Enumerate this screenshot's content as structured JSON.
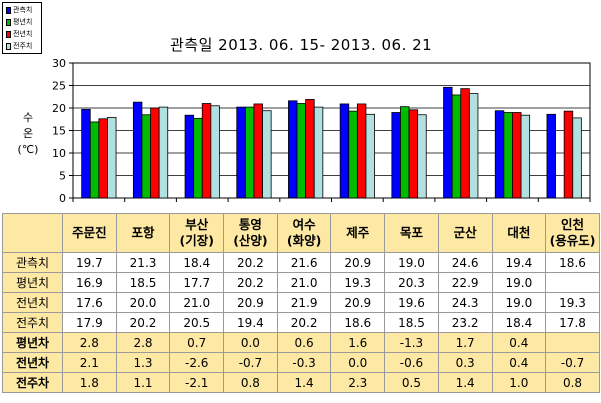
{
  "legend": [
    {
      "label": "관측치",
      "color": "#0000ff"
    },
    {
      "label": "평년치",
      "color": "#00bb00"
    },
    {
      "label": "전년치",
      "color": "#ff0000"
    },
    {
      "label": "전주치",
      "color": "#b0e0e0"
    }
  ],
  "chart_data": {
    "type": "bar",
    "title": "관측일 2013. 06. 15-  2013. 06. 21",
    "ylabel": "수온 (℃)",
    "ylim": [
      0,
      30
    ],
    "yticks": [
      0,
      5,
      10,
      15,
      20,
      25,
      30
    ],
    "grid": true,
    "legend_position": "top-left",
    "categories": [
      "주문진",
      "포항",
      "부산(기장)",
      "통영(산양)",
      "여수(화양)",
      "제주",
      "목포",
      "군산",
      "대천",
      "인천(용유도)"
    ],
    "series": [
      {
        "name": "관측치",
        "color": "#0000ff",
        "values": [
          19.7,
          21.3,
          18.4,
          20.2,
          21.6,
          20.9,
          19.0,
          24.6,
          19.4,
          18.6
        ]
      },
      {
        "name": "평년치",
        "color": "#00bb00",
        "values": [
          16.9,
          18.5,
          17.7,
          20.2,
          21.0,
          19.3,
          20.3,
          22.9,
          19.0,
          null
        ]
      },
      {
        "name": "전년치",
        "color": "#ff0000",
        "values": [
          17.6,
          20.0,
          21.0,
          20.9,
          21.9,
          20.9,
          19.6,
          24.3,
          19.0,
          19.3
        ]
      },
      {
        "name": "전주치",
        "color": "#b0e0e0",
        "values": [
          17.9,
          20.2,
          20.5,
          19.4,
          20.2,
          18.6,
          18.5,
          23.2,
          18.4,
          17.8
        ]
      }
    ]
  },
  "table": {
    "headers": [
      [
        "주문진"
      ],
      [
        "포항"
      ],
      [
        "부산",
        "(기장)"
      ],
      [
        "통영",
        "(산양)"
      ],
      [
        "여수",
        "(화양)"
      ],
      [
        "제주"
      ],
      [
        "목포"
      ],
      [
        "군산"
      ],
      [
        "대천"
      ],
      [
        "인천",
        "(용유도)"
      ]
    ],
    "rows": [
      {
        "label": "관측치",
        "dark": false,
        "values": [
          "19.7",
          "21.3",
          "18.4",
          "20.2",
          "21.6",
          "20.9",
          "19.0",
          "24.6",
          "19.4",
          "18.6"
        ]
      },
      {
        "label": "평년치",
        "dark": false,
        "values": [
          "16.9",
          "18.5",
          "17.7",
          "20.2",
          "21.0",
          "19.3",
          "20.3",
          "22.9",
          "19.0",
          ""
        ]
      },
      {
        "label": "전년치",
        "dark": false,
        "values": [
          "17.6",
          "20.0",
          "21.0",
          "20.9",
          "21.9",
          "20.9",
          "19.6",
          "24.3",
          "19.0",
          "19.3"
        ]
      },
      {
        "label": "전주치",
        "dark": false,
        "values": [
          "17.9",
          "20.2",
          "20.5",
          "19.4",
          "20.2",
          "18.6",
          "18.5",
          "23.2",
          "18.4",
          "17.8"
        ]
      },
      {
        "label": "평년차",
        "dark": true,
        "values": [
          "2.8",
          "2.8",
          "0.7",
          "0.0",
          "0.6",
          "1.6",
          "-1.3",
          "1.7",
          "0.4",
          ""
        ]
      },
      {
        "label": "전년차",
        "dark": true,
        "values": [
          "2.1",
          "1.3",
          "-2.6",
          "-0.7",
          "-0.3",
          "0.0",
          "-0.6",
          "0.3",
          "0.4",
          "-0.7"
        ]
      },
      {
        "label": "전주차",
        "dark": true,
        "values": [
          "1.8",
          "1.1",
          "-2.1",
          "0.8",
          "1.4",
          "2.3",
          "0.5",
          "1.4",
          "1.0",
          "0.8"
        ]
      }
    ]
  }
}
